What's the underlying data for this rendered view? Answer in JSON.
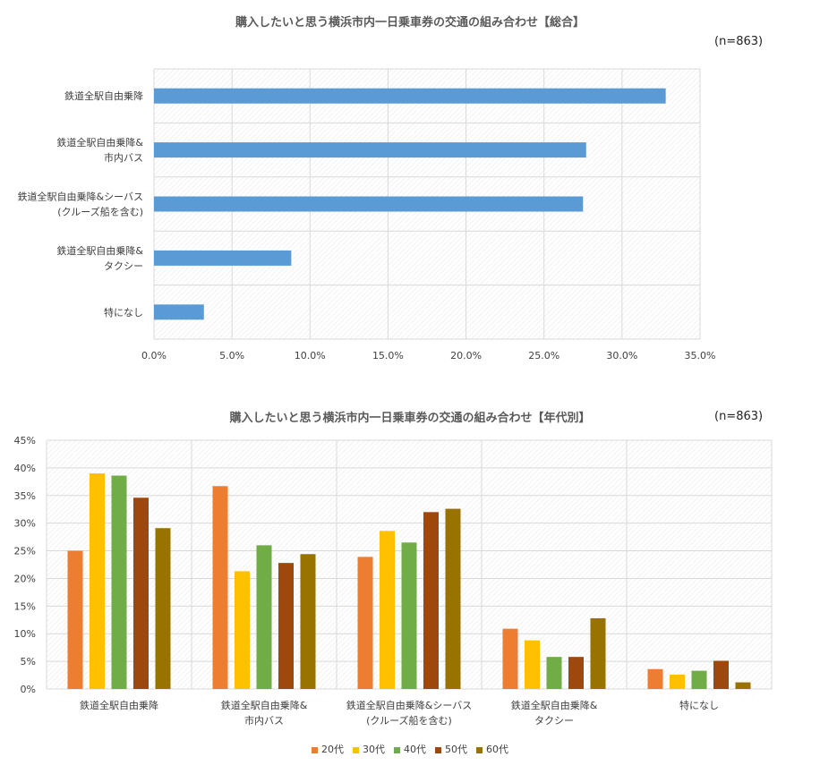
{
  "charts": {
    "overall": {
      "title": "購入したいと思う横浜市内一日乗車券の交通の組み合わせ【総合】",
      "n_label": "(n=863)"
    },
    "by_age": {
      "title": "購入したいと思う横浜市内一日乗車券の交通の組み合わせ【年代別】",
      "n_label": "(n=863)"
    }
  },
  "colors": {
    "overall_bar": "#5B9BD5",
    "20代": "#ED7D31",
    "30代": "#FFC000",
    "40代": "#70AD47",
    "50代": "#9E480E",
    "60代": "#997300"
  },
  "chart_data": [
    {
      "type": "bar",
      "orientation": "horizontal",
      "title": "購入したいと思う横浜市内一日乗車券の交通の組み合わせ【総合】",
      "categories": [
        [
          "鉄道全駅自由乗降"
        ],
        [
          "鉄道全駅自由乗降&",
          "市内バス"
        ],
        [
          "鉄道全駅自由乗降&シーバス",
          "(クルーズ船を含む)"
        ],
        [
          "鉄道全駅自由乗降&",
          "タクシー"
        ],
        [
          "特になし"
        ]
      ],
      "values": [
        32.8,
        27.7,
        27.5,
        8.8,
        3.2
      ],
      "xlim": [
        0,
        35
      ],
      "ticks": [
        "0.0%",
        "5.0%",
        "10.0%",
        "15.0%",
        "20.0%",
        "25.0%",
        "30.0%",
        "35.0%"
      ],
      "grid": true
    },
    {
      "type": "bar",
      "orientation": "vertical",
      "title": "購入したいと思う横浜市内一日乗車券の交通の組み合わせ【年代別】",
      "categories": [
        [
          "鉄道全駅自由乗降"
        ],
        [
          "鉄道全駅自由乗降&",
          "市内バス"
        ],
        [
          "鉄道全駅自由乗降&シーバス",
          "(クルーズ船を含む)"
        ],
        [
          "鉄道全駅自由乗降&",
          "タクシー"
        ],
        [
          "特になし"
        ]
      ],
      "series": [
        {
          "name": "20代",
          "values": [
            25.0,
            36.7,
            23.9,
            10.9,
            3.6
          ]
        },
        {
          "name": "30代",
          "values": [
            39.0,
            21.3,
            28.6,
            8.8,
            2.6
          ]
        },
        {
          "name": "40代",
          "values": [
            38.6,
            26.0,
            26.5,
            5.8,
            3.3
          ]
        },
        {
          "name": "50代",
          "values": [
            34.6,
            22.8,
            32.0,
            5.8,
            5.1
          ]
        },
        {
          "name": "60代",
          "values": [
            29.1,
            24.4,
            32.6,
            12.8,
            1.2
          ]
        }
      ],
      "ylim": [
        0,
        45
      ],
      "ticks": [
        "0%",
        "5%",
        "10%",
        "15%",
        "20%",
        "25%",
        "30%",
        "35%",
        "40%",
        "45%"
      ],
      "legend_position": "bottom",
      "grid": true
    }
  ]
}
